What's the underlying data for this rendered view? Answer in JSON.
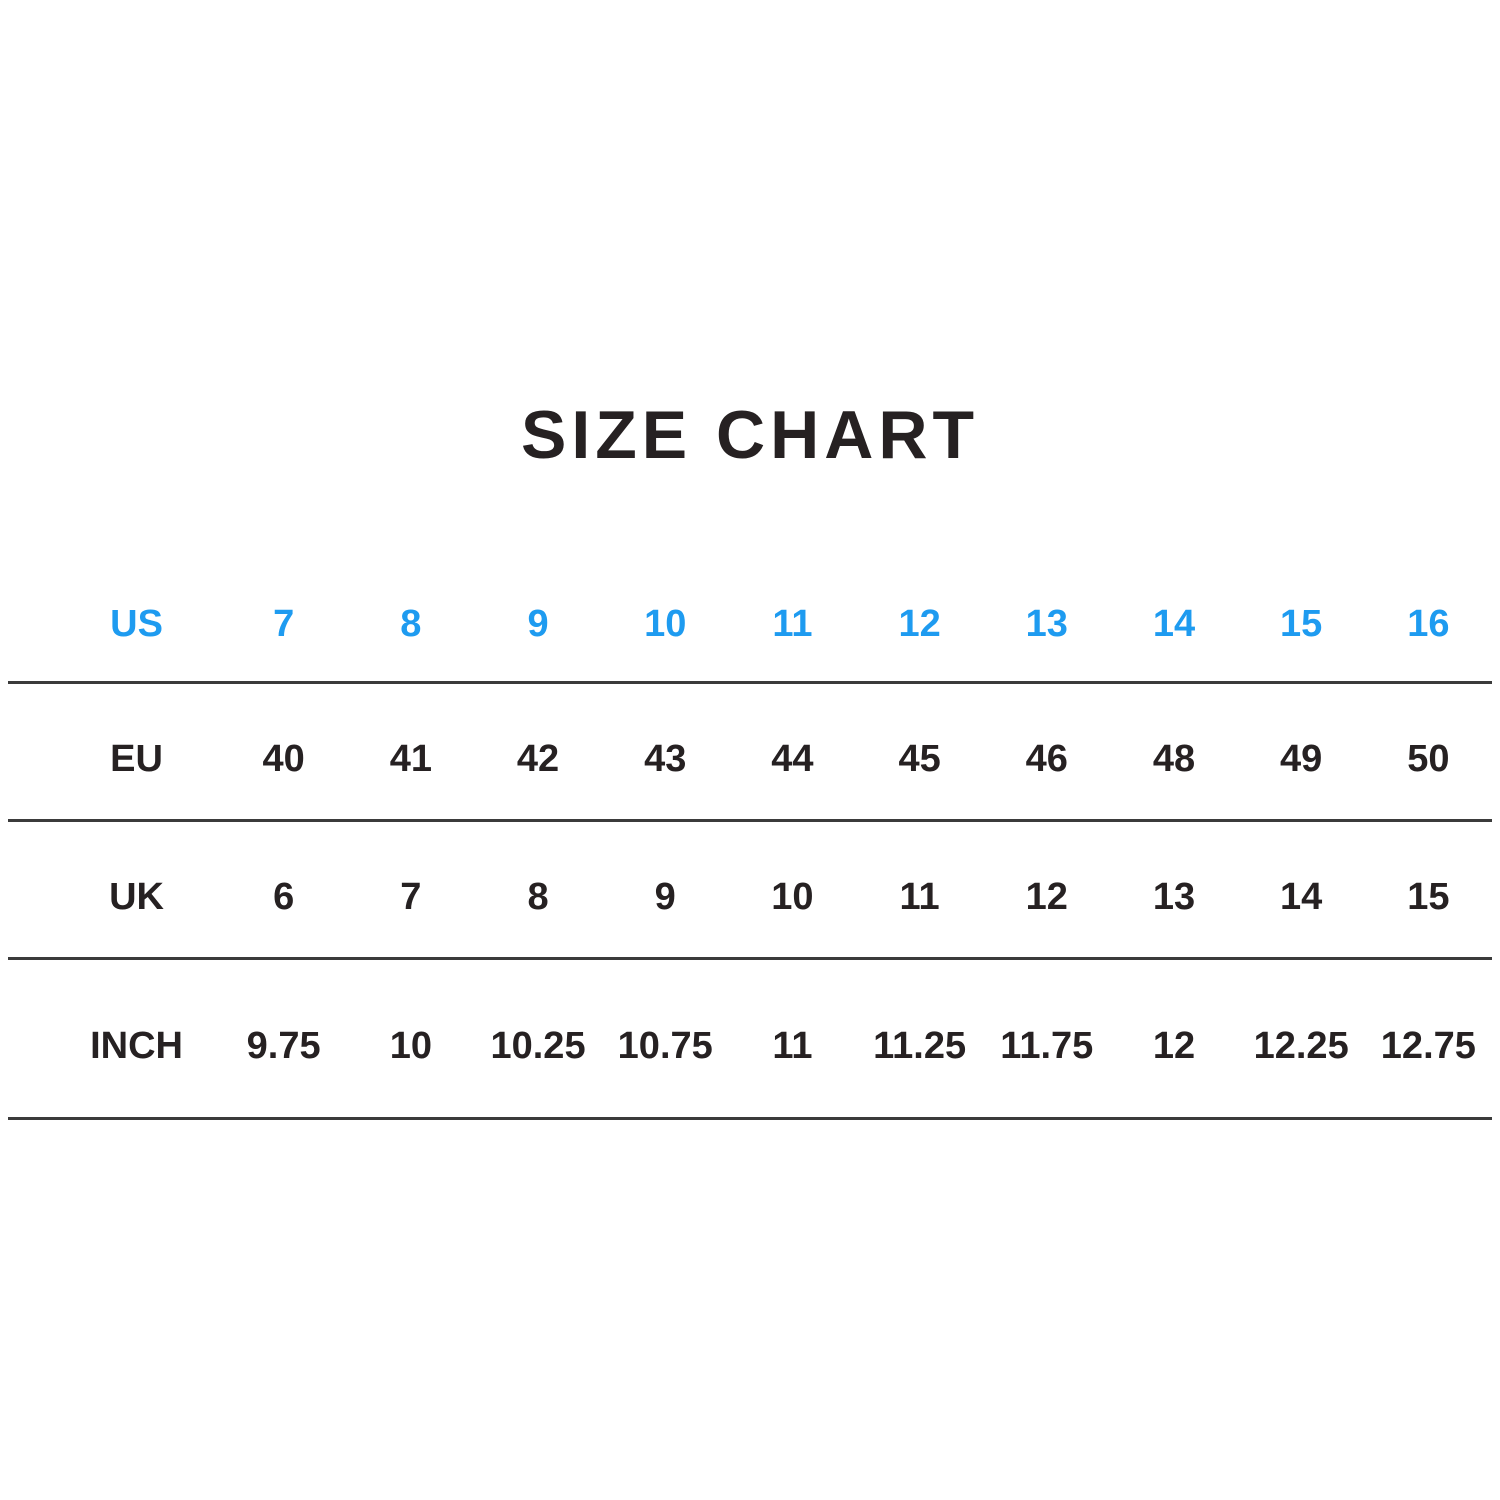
{
  "title": "SIZE CHART",
  "colors": {
    "background": "#ffffff",
    "title_text": "#262122",
    "body_text": "#262122",
    "highlight_row": "#1e9bf0",
    "divider": "#3b3b3b"
  },
  "size_table": {
    "rows": [
      {
        "label": "US",
        "highlight": true,
        "values": [
          "7",
          "8",
          "9",
          "10",
          "11",
          "12",
          "13",
          "14",
          "15",
          "16"
        ]
      },
      {
        "label": "EU",
        "highlight": false,
        "values": [
          "40",
          "41",
          "42",
          "43",
          "44",
          "45",
          "46",
          "48",
          "49",
          "50"
        ]
      },
      {
        "label": "UK",
        "highlight": false,
        "values": [
          "6",
          "7",
          "8",
          "9",
          "10",
          "11",
          "12",
          "13",
          "14",
          "15"
        ]
      },
      {
        "label": "INCH",
        "highlight": false,
        "values": [
          "9.75",
          "10",
          "10.25",
          "10.75",
          "11",
          "11.25",
          "11.75",
          "12",
          "12.25",
          "12.75"
        ]
      }
    ]
  },
  "chart_data": {
    "type": "table",
    "title": "SIZE CHART",
    "row_headers": [
      "US",
      "EU",
      "UK",
      "INCH"
    ],
    "rows": {
      "US": [
        7,
        8,
        9,
        10,
        11,
        12,
        13,
        14,
        15,
        16
      ],
      "EU": [
        40,
        41,
        42,
        43,
        44,
        45,
        46,
        48,
        49,
        50
      ],
      "UK": [
        6,
        7,
        8,
        9,
        10,
        11,
        12,
        13,
        14,
        15
      ],
      "INCH": [
        9.75,
        10,
        10.25,
        10.75,
        11,
        11.25,
        11.75,
        12,
        12.25,
        12.75
      ]
    },
    "layout_hints": {
      "highlighted_row": "US",
      "highlight_color": "#1e9bf0",
      "divider_below_each_row": true,
      "grid_vertical_lines": false
    }
  }
}
